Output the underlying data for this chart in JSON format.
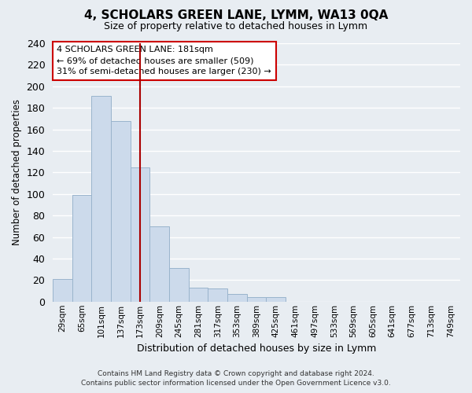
{
  "title": "4, SCHOLARS GREEN LANE, LYMM, WA13 0QA",
  "subtitle": "Size of property relative to detached houses in Lymm",
  "xlabel": "Distribution of detached houses by size in Lymm",
  "ylabel": "Number of detached properties",
  "bar_labels": [
    "29sqm",
    "65sqm",
    "101sqm",
    "137sqm",
    "173sqm",
    "209sqm",
    "245sqm",
    "281sqm",
    "317sqm",
    "353sqm",
    "389sqm",
    "425sqm",
    "461sqm",
    "497sqm",
    "533sqm",
    "569sqm",
    "605sqm",
    "641sqm",
    "677sqm",
    "713sqm",
    "749sqm"
  ],
  "bar_heights": [
    21,
    99,
    191,
    168,
    125,
    70,
    31,
    13,
    12,
    7,
    4,
    4,
    0,
    0,
    0,
    0,
    0,
    0,
    0,
    0,
    0
  ],
  "highlight_bar_index": 4,
  "normal_color": "#ccdaeb",
  "normal_edge_color": "#9ab4cc",
  "vline_x_index": 4,
  "vline_color": "#aa0000",
  "ylim": [
    0,
    240
  ],
  "yticks": [
    0,
    20,
    40,
    60,
    80,
    100,
    120,
    140,
    160,
    180,
    200,
    220,
    240
  ],
  "annotation_title": "4 SCHOLARS GREEN LANE: 181sqm",
  "annotation_line1": "← 69% of detached houses are smaller (509)",
  "annotation_line2": "31% of semi-detached houses are larger (230) →",
  "footer1": "Contains HM Land Registry data © Crown copyright and database right 2024.",
  "footer2": "Contains public sector information licensed under the Open Government Licence v3.0.",
  "background_color": "#e8edf2",
  "grid_color": "#ffffff",
  "annotation_box_color": "#ffffff",
  "annotation_box_edge": "#cc0000"
}
